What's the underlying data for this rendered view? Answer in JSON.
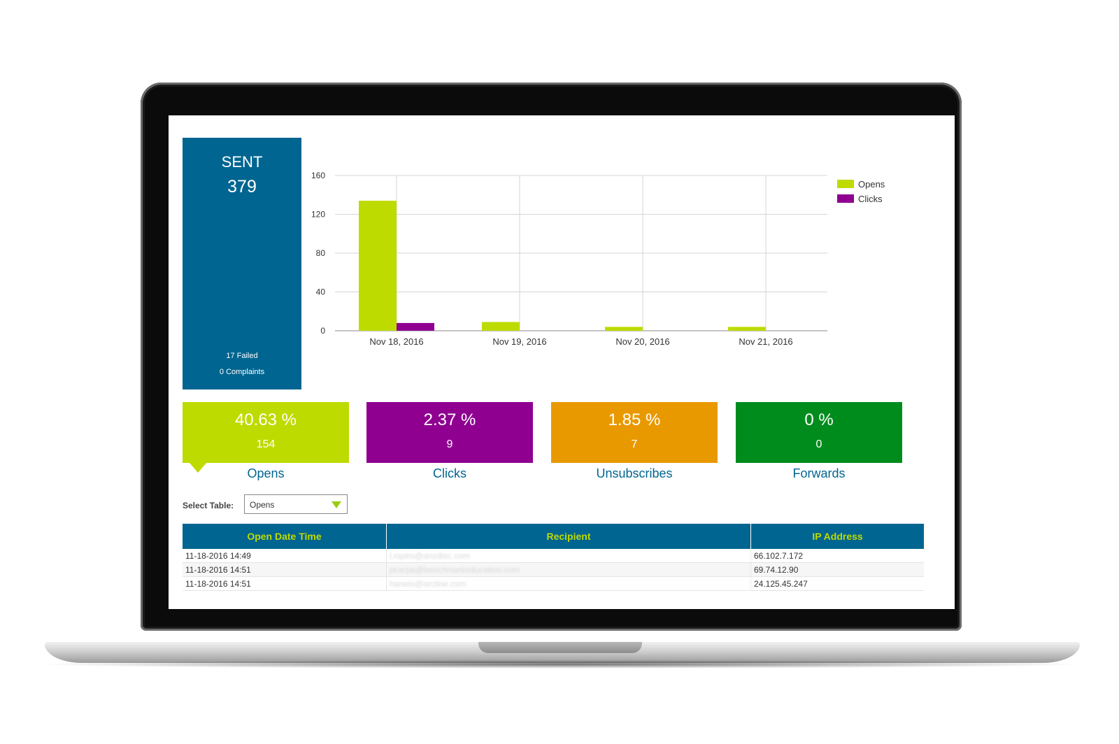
{
  "sent_panel": {
    "label": "SENT",
    "value": "379",
    "failed": "17 Failed",
    "complaints": "0 Complaints"
  },
  "chart_data": {
    "type": "bar",
    "categories": [
      "Nov 18, 2016",
      "Nov 19, 2016",
      "Nov 20, 2016",
      "Nov 21, 2016"
    ],
    "series": [
      {
        "name": "Opens",
        "color": "#bedb00",
        "values": [
          134,
          9,
          4,
          4
        ]
      },
      {
        "name": "Clicks",
        "color": "#8f0091",
        "values": [
          8,
          0,
          0,
          0
        ]
      }
    ],
    "yticks": [
      "0",
      "40",
      "80",
      "120",
      "160"
    ],
    "ylim": [
      0,
      160
    ],
    "grid": true,
    "legend_position": "top-right"
  },
  "tiles": [
    {
      "percent": "40.63 %",
      "count": "154",
      "label": "Opens",
      "color": "#bedb00"
    },
    {
      "percent": "2.37 %",
      "count": "9",
      "label": "Clicks",
      "color": "#8f0091"
    },
    {
      "percent": "1.85 %",
      "count": "7",
      "label": "Unsubscribes",
      "color": "#e99900"
    },
    {
      "percent": "0 %",
      "count": "0",
      "label": "Forwards",
      "color": "#008c1d"
    }
  ],
  "table_select": {
    "label": "Select Table:",
    "value": "Opens"
  },
  "table": {
    "headers": [
      "Open Date Time",
      "Recipient",
      "IP Address"
    ],
    "rows": [
      {
        "datetime": "11-18-2016 14:49",
        "recipient": "l.rspiro@anzdisc.com",
        "ip": "66.102.7.172"
      },
      {
        "datetime": "11-18-2016 14:51",
        "recipient": "pcarpa@benchmarkeducation.com",
        "ip": "69.74.12.90"
      },
      {
        "datetime": "11-18-2016 14:51",
        "recipient": "hanelo@arcline.com",
        "ip": "24.125.45.247"
      }
    ]
  },
  "colors": {
    "brand_blue": "#006591",
    "opens_green": "#bedb00",
    "clicks_purple": "#8f0091",
    "unsub_orange": "#e99900",
    "forwards_green": "#008c1d"
  }
}
